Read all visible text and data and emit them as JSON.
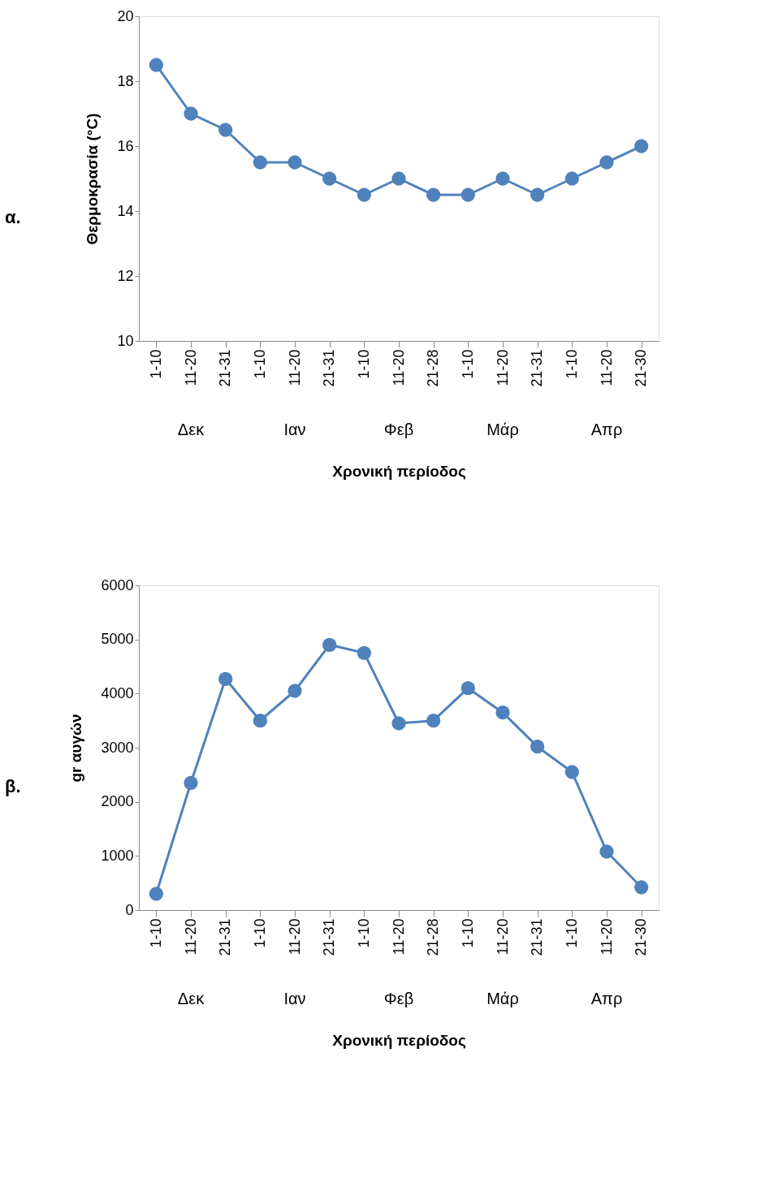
{
  "chart_data": [
    {
      "type": "line",
      "categories": [
        "1-10",
        "11-20",
        "21-31",
        "1-10",
        "11-20",
        "21-31",
        "1-10",
        "11-20",
        "21-28",
        "1-10",
        "11-20",
        "21-31",
        "1-10",
        "11-20",
        "21-30"
      ],
      "series": [
        {
          "color": "#4f81bd",
          "values": [
            18.5,
            17,
            16.5,
            15.5,
            15.5,
            15,
            14.5,
            15,
            14.5,
            14.5,
            15,
            14.5,
            15,
            15.5,
            16
          ]
        }
      ],
      "ylabel": "Θερμοκρασία (°C)",
      "xlabel": "Χρονική περίοδος",
      "ylim": [
        10,
        20
      ],
      "yticks": [
        10,
        12,
        14,
        16,
        18,
        20
      ],
      "annotations": [
        "α.",
        "Δεκ",
        "Ιαν",
        "Φεβ",
        "Μάρ",
        "Απρ"
      ],
      "marker": "circle",
      "line_style": "solid",
      "grid": false,
      "legend": false
    },
    {
      "type": "line",
      "categories": [
        "1-10",
        "11-20",
        "21-31",
        "1-10",
        "11-20",
        "21-31",
        "1-10",
        "11-20",
        "21-28",
        "1-10",
        "11-20",
        "21-31",
        "1-10",
        "11-20",
        "21-30"
      ],
      "series": [
        {
          "color": "#4f81bd",
          "values": [
            300,
            2350,
            4270,
            3500,
            4050,
            4900,
            4750,
            3450,
            3500,
            4100,
            3650,
            3020,
            2550,
            1080,
            420
          ]
        }
      ],
      "ylabel": "gr αυγών",
      "xlabel": "Χρονική περίοδος",
      "ylim": [
        0,
        6000
      ],
      "yticks": [
        0,
        1000,
        2000,
        3000,
        4000,
        5000,
        6000
      ],
      "annotations": [
        "β.",
        "Δεκ",
        "Ιαν",
        "Φεβ",
        "Μάρ",
        "Απρ"
      ],
      "marker": "circle",
      "line_style": "solid",
      "grid": false,
      "legend": false
    }
  ]
}
